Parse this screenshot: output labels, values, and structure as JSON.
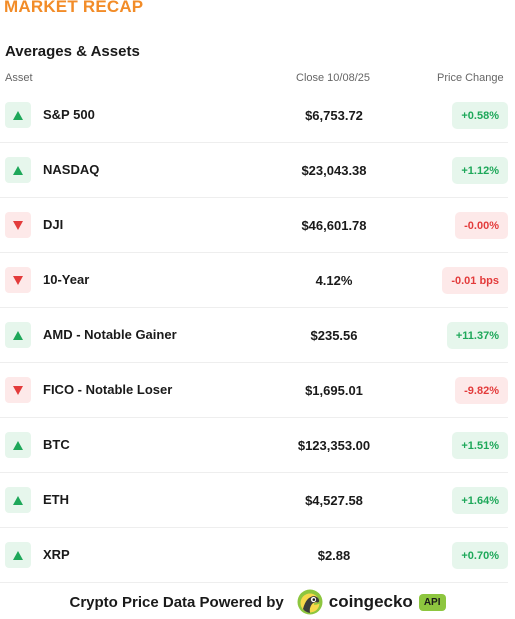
{
  "header": {
    "title": "MARKET RECAP",
    "section_title": "Averages & Assets"
  },
  "columns": {
    "asset": "Asset",
    "close": "Close 10/08/25",
    "change": "Price Change"
  },
  "rows": [
    {
      "direction": "up",
      "icon": "arrow-up-icon",
      "name": "S&P 500",
      "close": "$6,753.72",
      "change": "+0.58%"
    },
    {
      "direction": "up",
      "icon": "arrow-up-icon",
      "name": "NASDAQ",
      "close": "$23,043.38",
      "change": "+1.12%"
    },
    {
      "direction": "down",
      "icon": "arrow-down-icon",
      "name": "DJI",
      "close": "$46,601.78",
      "change": "-0.00%"
    },
    {
      "direction": "down",
      "icon": "arrow-down-icon",
      "name": "10-Year",
      "close": "4.12%",
      "change": "-0.01 bps"
    },
    {
      "direction": "up",
      "icon": "arrow-up-icon",
      "name": "AMD - Notable Gainer",
      "close": "$235.56",
      "change": "+11.37%"
    },
    {
      "direction": "down",
      "icon": "arrow-down-icon",
      "name": "FICO - Notable Loser",
      "close": "$1,695.01",
      "change": "-9.82%"
    },
    {
      "direction": "up",
      "icon": "arrow-up-icon",
      "name": "BTC",
      "close": "$123,353.00",
      "change": "+1.51%"
    },
    {
      "direction": "up",
      "icon": "arrow-up-icon",
      "name": "ETH",
      "close": "$4,527.58",
      "change": "+1.64%"
    },
    {
      "direction": "up",
      "icon": "arrow-up-icon",
      "name": "XRP",
      "close": "$2.88",
      "change": "+0.70%"
    }
  ],
  "footer": {
    "text": "Crypto Price Data Powered by",
    "brand": "coingecko",
    "badge": "API",
    "logo_icon": "coingecko-logo-icon"
  },
  "colors": {
    "accent": "#f28c28",
    "positive": "#1ea85a",
    "negative": "#e33b3b",
    "brand_green": "#8dc63f"
  }
}
